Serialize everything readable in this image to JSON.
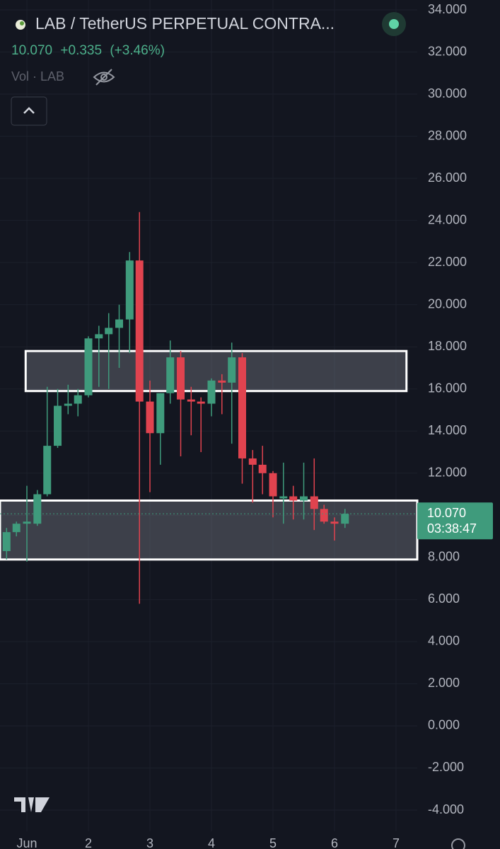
{
  "header": {
    "title": "LAB / TetherUS PERPETUAL CONTRA...",
    "price": "10.070",
    "change": "+0.335",
    "change_pct": "(+3.46%)",
    "volume": "Vol · LAB"
  },
  "chart_data": {
    "type": "candlestick",
    "up_color": "#3f9b7c",
    "down_color": "#e0434f",
    "grid": true,
    "x": [
      0.67,
      0.83,
      1.0,
      1.17,
      1.33,
      1.5,
      1.67,
      1.83,
      2.0,
      2.17,
      2.33,
      2.5,
      2.67,
      2.83,
      3.0,
      3.17,
      3.33,
      3.5,
      3.67,
      3.83,
      4.0,
      4.17,
      4.33,
      4.5,
      4.67,
      4.83,
      5.0,
      5.17,
      5.33,
      5.5,
      5.67,
      5.83,
      6.0,
      6.17
    ],
    "open": [
      8.3,
      9.2,
      9.6,
      9.6,
      11.0,
      13.3,
      15.2,
      15.3,
      15.7,
      18.4,
      18.6,
      18.9,
      19.3,
      22.1,
      15.4,
      13.9,
      15.8,
      17.5,
      15.5,
      15.4,
      15.3,
      16.4,
      16.3,
      17.5,
      12.7,
      12.4,
      12.0,
      10.8,
      10.9,
      10.7,
      10.9,
      10.3,
      9.7,
      9.6
    ],
    "high": [
      9.4,
      9.7,
      11.4,
      11.2,
      16.1,
      16.0,
      16.2,
      16.0,
      18.5,
      19.0,
      19.6,
      20.0,
      22.5,
      24.4,
      16.4,
      15.8,
      18.3,
      17.8,
      16.1,
      15.6,
      16.5,
      16.7,
      18.2,
      17.7,
      13.1,
      13.3,
      12.1,
      12.5,
      11.4,
      12.5,
      12.7,
      10.5,
      9.9,
      10.3
    ],
    "low": [
      7.9,
      9.0,
      7.8,
      9.5,
      10.9,
      13.2,
      14.8,
      14.7,
      15.6,
      16.1,
      16.0,
      17.0,
      17.7,
      5.8,
      11.1,
      12.4,
      15.3,
      12.8,
      13.8,
      13.0,
      14.7,
      14.8,
      13.4,
      11.5,
      10.6,
      11.0,
      9.9,
      9.6,
      9.8,
      9.8,
      9.3,
      9.6,
      8.8,
      9.4
    ],
    "close": [
      9.2,
      9.6,
      9.7,
      11.0,
      13.3,
      15.2,
      15.3,
      15.7,
      18.4,
      18.6,
      18.9,
      19.3,
      22.1,
      15.4,
      13.9,
      15.8,
      17.5,
      15.5,
      15.4,
      15.3,
      16.4,
      16.3,
      17.5,
      12.7,
      12.4,
      12.0,
      10.9,
      10.9,
      10.7,
      10.9,
      10.3,
      9.7,
      9.6,
      10.07
    ],
    "xlim": [
      0.563,
      7.345
    ],
    "xticks": [
      {
        "value": 1,
        "label": "Jun"
      },
      2,
      3,
      4,
      5,
      6,
      7
    ],
    "ylim": [
      34.0,
      -4.0
    ],
    "yticks": [
      {
        "value": 34,
        "label": "34.000"
      },
      {
        "value": 32,
        "label": "32.000"
      },
      {
        "value": 30,
        "label": "30.000"
      },
      {
        "value": 28,
        "label": "28.000"
      },
      {
        "value": 26,
        "label": "26.000"
      },
      {
        "value": 24,
        "label": "24.000"
      },
      {
        "value": 22,
        "label": "22.000"
      },
      {
        "value": 20,
        "label": "20.000"
      },
      {
        "value": 18,
        "label": "18.000"
      },
      {
        "value": 16,
        "label": "16.000"
      },
      {
        "value": 14,
        "label": "14.000"
      },
      {
        "value": 12,
        "label": "12.000"
      },
      {
        "value": 10,
        "label": "10.000"
      },
      {
        "value": 8,
        "label": "8.000"
      },
      {
        "value": 6,
        "label": "6.000"
      },
      {
        "value": 4,
        "label": "4.000"
      },
      {
        "value": 2,
        "label": "2.000"
      },
      {
        "value": 0,
        "label": "0.000"
      },
      {
        "value": -2,
        "label": "-2.000"
      },
      {
        "value": -4,
        "label": "-4.000"
      }
    ],
    "zones": [
      {
        "x0": 0.98,
        "x1": 7.17,
        "low": 15.9,
        "high": 17.8
      },
      {
        "x0": 0.563,
        "x1": 7.345,
        "low": 7.9,
        "high": 10.7
      }
    ],
    "last_price": {
      "value": 10.07,
      "label": "10.070"
    },
    "countdown": "03:38:47"
  }
}
